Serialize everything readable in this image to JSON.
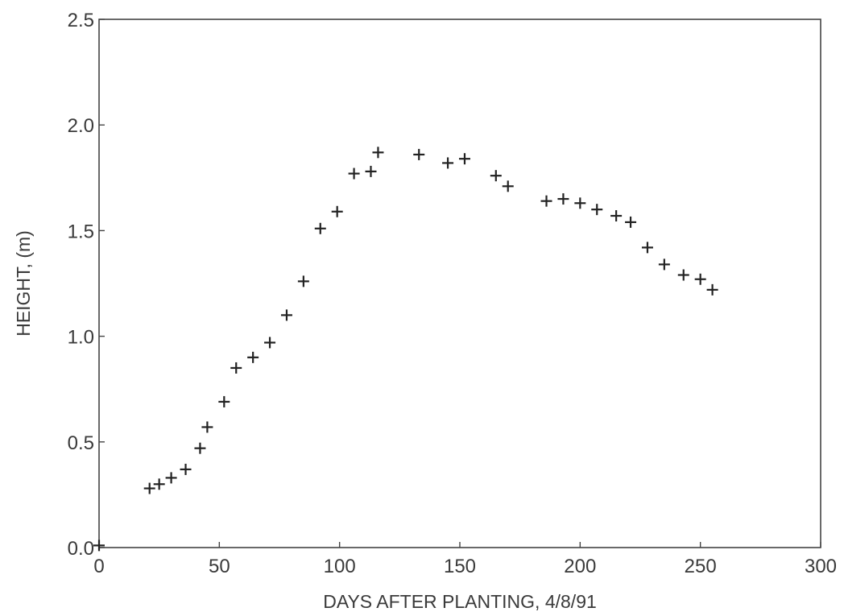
{
  "chart_data": {
    "type": "scatter",
    "xlabel": "DAYS AFTER PLANTING, 4/8/91",
    "ylabel": "HEIGHT, (m)",
    "xlim": [
      0,
      300
    ],
    "ylim": [
      0.0,
      2.5
    ],
    "xticks": [
      0,
      50,
      100,
      150,
      200,
      250,
      300
    ],
    "yticks": [
      0.0,
      0.5,
      1.0,
      1.5,
      2.0,
      2.5
    ],
    "xtick_labels": [
      "0",
      "50",
      "100",
      "150",
      "200",
      "250",
      "300"
    ],
    "ytick_labels": [
      "0.0",
      "0.5",
      "1.0",
      "1.5",
      "2.0",
      "2.5"
    ],
    "marker": "plus",
    "grid": false,
    "series": [
      {
        "x": [
          0,
          21,
          25,
          30,
          36,
          42,
          45,
          52,
          57,
          64,
          71,
          78,
          85,
          92,
          99,
          106,
          113,
          116,
          133,
          145,
          152,
          165,
          170,
          186,
          193,
          200,
          207,
          215,
          221,
          228,
          235,
          243,
          250,
          255
        ],
        "y": [
          0.01,
          0.28,
          0.3,
          0.33,
          0.37,
          0.47,
          0.57,
          0.69,
          0.85,
          0.9,
          0.97,
          1.1,
          1.26,
          1.51,
          1.59,
          1.77,
          1.78,
          1.87,
          1.86,
          1.82,
          1.84,
          1.76,
          1.71,
          1.64,
          1.65,
          1.63,
          1.6,
          1.57,
          1.54,
          1.42,
          1.34,
          1.29,
          1.27,
          1.22
        ]
      }
    ]
  }
}
